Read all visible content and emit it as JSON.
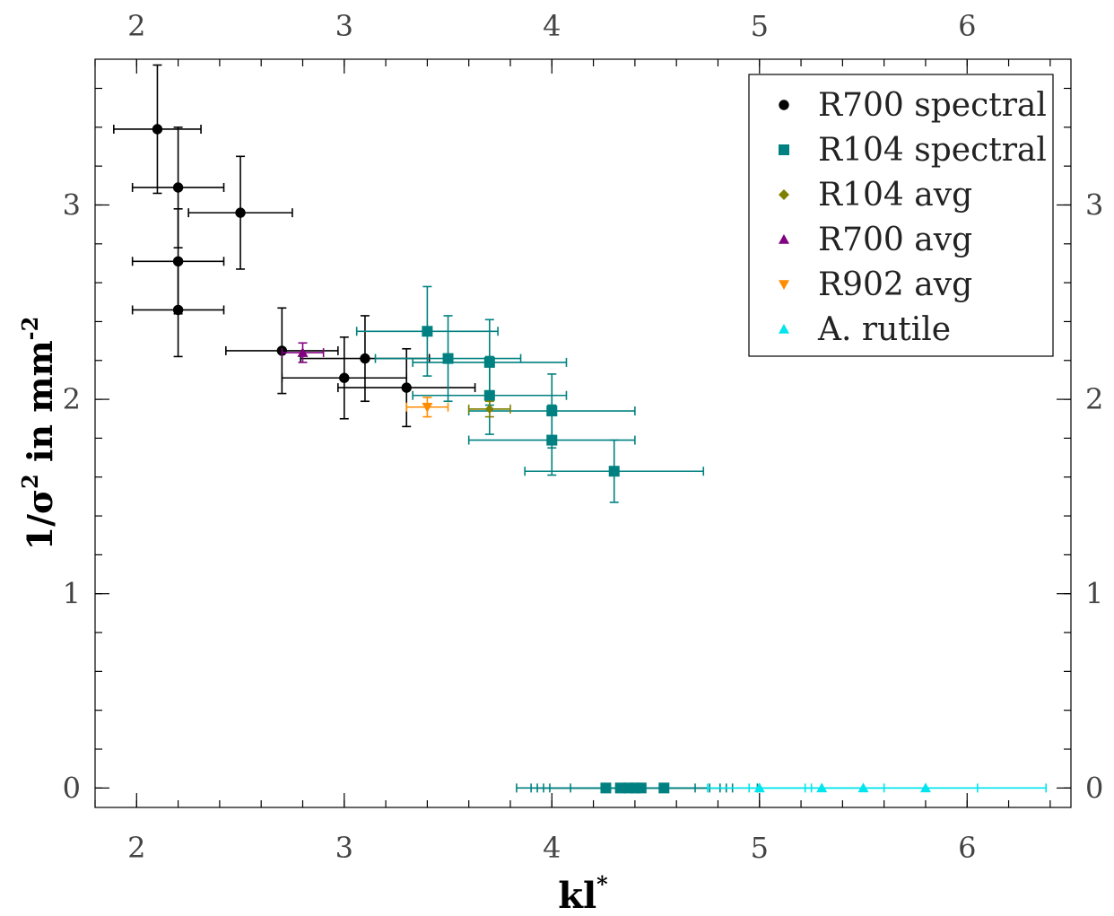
{
  "chart_data": {
    "type": "scatter",
    "title": "",
    "xlabel": {
      "base": "kl",
      "sup": "*"
    },
    "ylabel": {
      "prefix": "1/",
      "sigma": "σ",
      "sup1": "2",
      "middle": " in mm",
      "sup2": "-2"
    },
    "xlim": [
      1.8,
      6.5
    ],
    "ylim": [
      -0.1,
      3.75
    ],
    "x_ticks": [
      2,
      3,
      4,
      5,
      6
    ],
    "x_tick_labels": [
      "2",
      "3",
      "4",
      "5",
      "6"
    ],
    "y_ticks": [
      0,
      1,
      2,
      3
    ],
    "y_tick_labels": [
      "0",
      "1",
      "2",
      "3"
    ],
    "x_minor_step": 0.2,
    "y_minor_step": 0.2,
    "grid": false,
    "mirrored_axes": true,
    "legend_position": "top-right",
    "series": [
      {
        "name": "R700 spectral",
        "color": "#000000",
        "marker": "circle",
        "points": [
          {
            "x": 2.1,
            "y": 3.39,
            "xerr": 0.21,
            "yerr": 0.33
          },
          {
            "x": 2.2,
            "y": 3.09,
            "xerr": 0.22,
            "yerr": 0.31
          },
          {
            "x": 2.5,
            "y": 2.96,
            "xerr": 0.25,
            "yerr": 0.29
          },
          {
            "x": 2.2,
            "y": 2.71,
            "xerr": 0.22,
            "yerr": 0.27
          },
          {
            "x": 2.2,
            "y": 2.46,
            "xerr": 0.22,
            "yerr": 0.24
          },
          {
            "x": 2.7,
            "y": 2.25,
            "xerr": 0.27,
            "yerr": 0.22
          },
          {
            "x": 3.1,
            "y": 2.21,
            "xerr": 0.31,
            "yerr": 0.22
          },
          {
            "x": 3.0,
            "y": 2.11,
            "xerr": 0.3,
            "yerr": 0.21
          },
          {
            "x": 3.3,
            "y": 2.06,
            "xerr": 0.33,
            "yerr": 0.2
          }
        ]
      },
      {
        "name": "R104 spectral",
        "color": "#008080",
        "marker": "square",
        "points": [
          {
            "x": 3.4,
            "y": 2.35,
            "xerr": 0.34,
            "yerr": 0.23
          },
          {
            "x": 3.5,
            "y": 2.21,
            "xerr": 0.35,
            "yerr": 0.22
          },
          {
            "x": 3.7,
            "y": 2.19,
            "xerr": 0.37,
            "yerr": 0.22
          },
          {
            "x": 3.7,
            "y": 2.02,
            "xerr": 0.37,
            "yerr": 0.2
          },
          {
            "x": 4.0,
            "y": 1.94,
            "xerr": 0.4,
            "yerr": 0.19
          },
          {
            "x": 4.0,
            "y": 1.79,
            "xerr": 0.4,
            "yerr": 0.18
          },
          {
            "x": 4.3,
            "y": 1.63,
            "xerr": 0.43,
            "yerr": 0.16
          },
          {
            "x": 4.26,
            "y": 0.0,
            "xerr": 0.43,
            "yerr": 0
          },
          {
            "x": 4.33,
            "y": 0.0,
            "xerr": 0.43,
            "yerr": 0
          },
          {
            "x": 4.37,
            "y": 0.0,
            "xerr": 0.44,
            "yerr": 0
          },
          {
            "x": 4.4,
            "y": 0.0,
            "xerr": 0.44,
            "yerr": 0
          },
          {
            "x": 4.43,
            "y": 0.0,
            "xerr": 0.44,
            "yerr": 0
          },
          {
            "x": 4.54,
            "y": 0.0,
            "xerr": 0.45,
            "yerr": 0
          }
        ]
      },
      {
        "name": "R104 avg",
        "color": "#808000",
        "marker": "diamond",
        "points": [
          {
            "x": 3.7,
            "y": 1.95,
            "xerr": 0.1,
            "yerr": 0.04
          }
        ]
      },
      {
        "name": "R700 avg",
        "color": "#800080",
        "marker": "triangle-up",
        "points": [
          {
            "x": 2.8,
            "y": 2.24,
            "xerr": 0.1,
            "yerr": 0.05
          }
        ]
      },
      {
        "name": "R902 avg",
        "color": "#ff8c00",
        "marker": "triangle-down",
        "points": [
          {
            "x": 3.4,
            "y": 1.96,
            "xerr": 0.1,
            "yerr": 0.05
          }
        ]
      },
      {
        "name": "A. rutile",
        "color": "#00e5ee",
        "marker": "triangle-up",
        "points": [
          {
            "x": 5.0,
            "y": 0.0,
            "xerr": 0.25,
            "yerr": 0
          },
          {
            "x": 5.3,
            "y": 0.0,
            "xerr": 0.3,
            "yerr": 0
          },
          {
            "x": 5.5,
            "y": 0.0,
            "xerr": 0.55,
            "yerr": 0
          },
          {
            "x": 5.8,
            "y": 0.0,
            "xerr": 0.58,
            "yerr": 0
          }
        ]
      }
    ]
  }
}
